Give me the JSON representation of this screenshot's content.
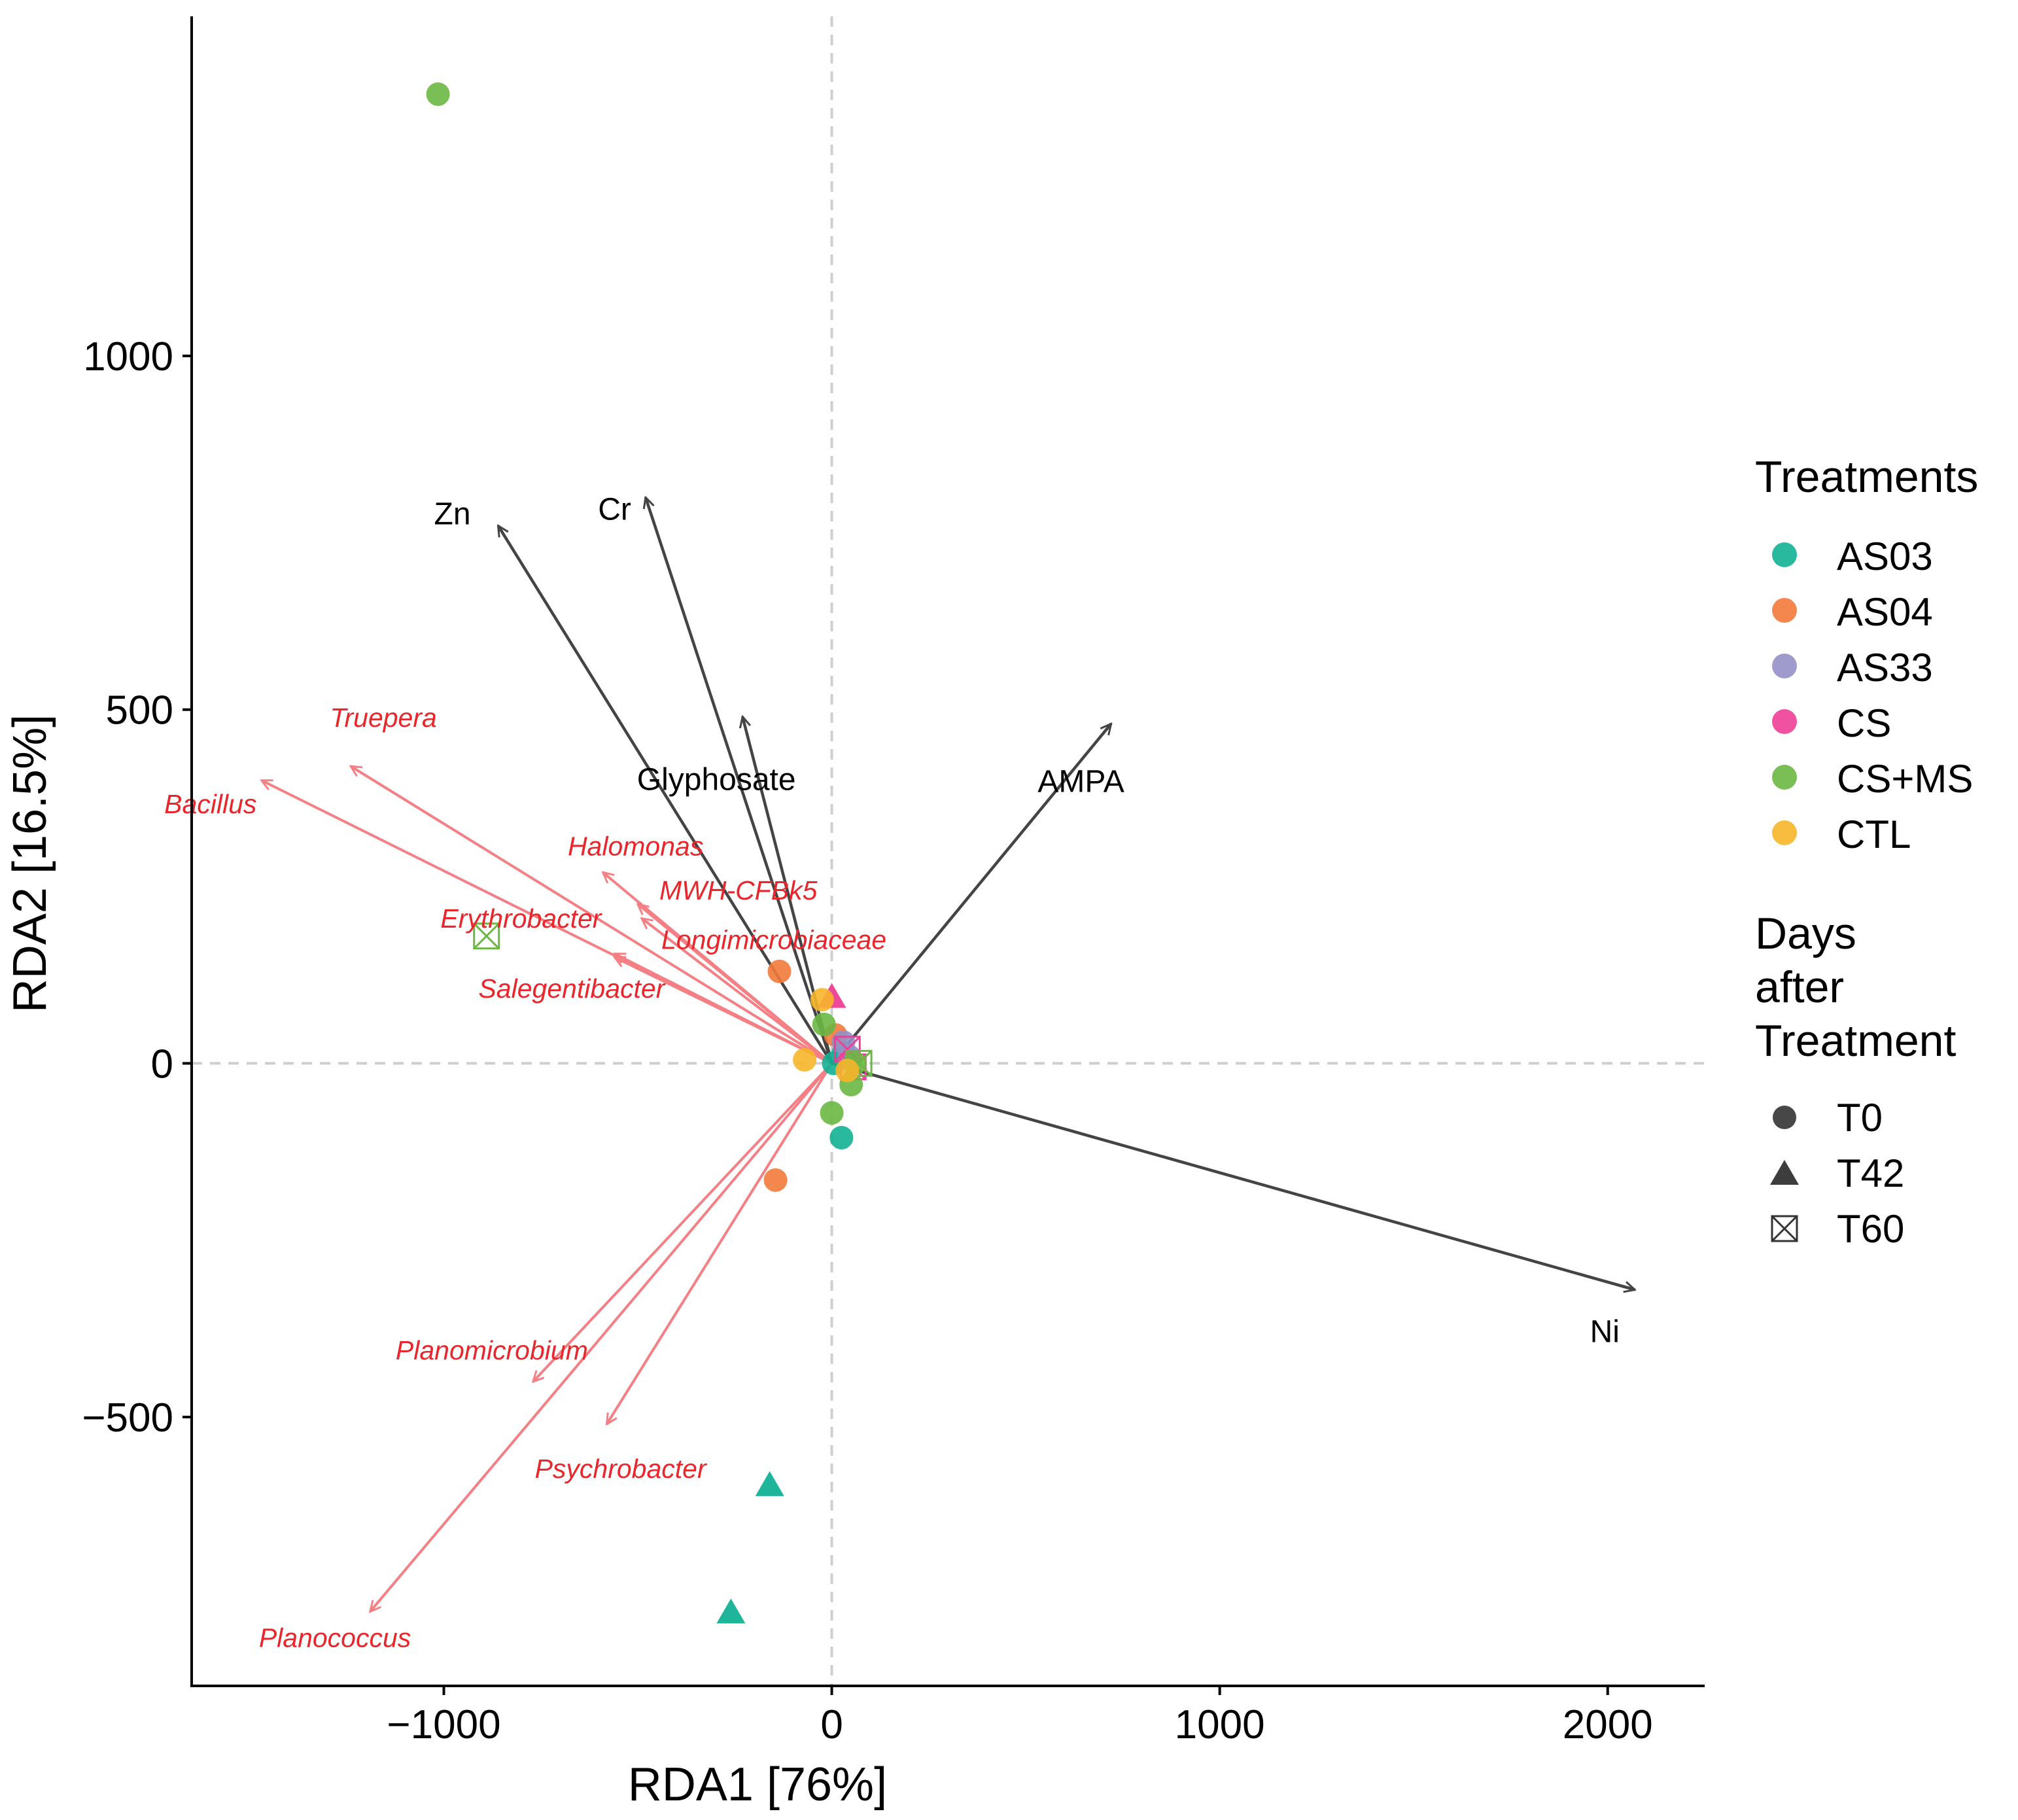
{
  "chart_data": {
    "type": "scatter",
    "subtype": "RDA biplot",
    "xlabel": "RDA1 [76%]",
    "ylabel": "RDA2 [16.5%]",
    "xlim": [
      -1650,
      2250
    ],
    "ylim": [
      -880,
      1480
    ],
    "xticks": [
      -1000,
      0,
      1000,
      2000
    ],
    "yticks": [
      -500,
      0,
      500,
      1000
    ],
    "xtick_labels": [
      "−1000",
      "0",
      "1000",
      "2000"
    ],
    "ytick_labels": [
      "−500",
      "0",
      "500",
      "1000"
    ],
    "reference_lines": {
      "x": 0,
      "y": 0,
      "style": "dashed"
    },
    "colors": {
      "AS03": "#12b195",
      "AS04": "#f27a3b",
      "AS33": "#9590c6",
      "CS": "#ee3f97",
      "CS+MS": "#6cb744",
      "CTL": "#f7b52a",
      "env_arrow": "#444444",
      "species_arrow": "#f47f85",
      "species_text": "#e8262b"
    },
    "env_vectors": [
      {
        "name": "Zn",
        "x": -860,
        "y": 760
      },
      {
        "name": "Cr",
        "x": -480,
        "y": 800
      },
      {
        "name": "Glyphosate",
        "x": -230,
        "y": 490
      },
      {
        "name": "AMPA",
        "x": 720,
        "y": 480
      },
      {
        "name": "Ni",
        "x": 2070,
        "y": -320
      }
    ],
    "species_vectors": [
      {
        "name": "Truepera",
        "x": -1240,
        "y": 420
      },
      {
        "name": "Bacillus",
        "x": -1470,
        "y": 400
      },
      {
        "name": "Halomonas",
        "x": -590,
        "y": 270
      },
      {
        "name": "MWH-CFBk5",
        "x": -500,
        "y": 225
      },
      {
        "name": "Longimicrobiaceae",
        "x": -490,
        "y": 205
      },
      {
        "name": "Erythrobacter",
        "x": -560,
        "y": 155
      },
      {
        "name": "Salegentibacter",
        "x": -560,
        "y": 150
      },
      {
        "name": "Planomicrobium",
        "x": -770,
        "y": -450
      },
      {
        "name": "Psychrobacter",
        "x": -580,
        "y": -510
      },
      {
        "name": "Planococcus",
        "x": -1190,
        "y": -775
      }
    ],
    "series": [
      {
        "treatment": "AS03",
        "day": "T0",
        "points": [
          [
            25,
            -105
          ],
          [
            5,
            0
          ],
          [
            30,
            15
          ]
        ]
      },
      {
        "treatment": "AS03",
        "day": "T42",
        "points": [
          [
            -160,
            -595
          ],
          [
            -260,
            -775
          ]
        ]
      },
      {
        "treatment": "AS04",
        "day": "T0",
        "points": [
          [
            -135,
            130
          ],
          [
            -145,
            -165
          ],
          [
            10,
            40
          ]
        ]
      },
      {
        "treatment": "AS33",
        "day": "T0",
        "points": [
          [
            30,
            30
          ],
          [
            45,
            10
          ]
        ]
      },
      {
        "treatment": "CS",
        "day": "T42",
        "points": [
          [
            0,
            95
          ]
        ]
      },
      {
        "treatment": "CS",
        "day": "T60",
        "points": [
          [
            55,
            -5
          ],
          [
            40,
            20
          ]
        ]
      },
      {
        "treatment": "CS+MS",
        "day": "T0",
        "points": [
          [
            -1015,
            1370
          ],
          [
            0,
            -70
          ],
          [
            50,
            -30
          ],
          [
            60,
            0
          ],
          [
            -20,
            55
          ]
        ]
      },
      {
        "treatment": "CS+MS",
        "day": "T60",
        "points": [
          [
            -890,
            180
          ],
          [
            70,
            0
          ]
        ]
      },
      {
        "treatment": "CTL",
        "day": "T0",
        "points": [
          [
            -70,
            5
          ],
          [
            -25,
            90
          ],
          [
            40,
            -10
          ]
        ]
      }
    ],
    "legend": {
      "position": "right",
      "treatments_title": "Treatments",
      "treatments": [
        "AS03",
        "AS04",
        "AS33",
        "CS",
        "CS+MS",
        "CTL"
      ],
      "days_title": [
        "Days",
        "after",
        "Treatment"
      ],
      "days": [
        "T0",
        "T42",
        "T60"
      ]
    }
  }
}
